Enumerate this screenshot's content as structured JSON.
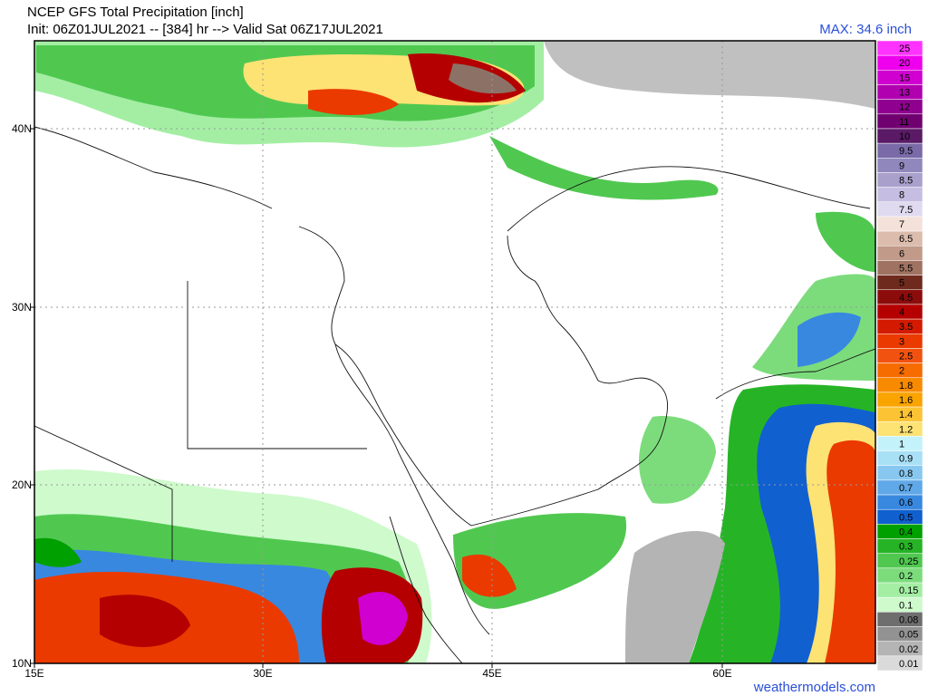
{
  "header": {
    "title": "NCEP GFS Total Precipitation [inch]",
    "subtitle": "Init: 06Z01JUL2021 -- [384] hr --> Valid Sat 06Z17JUL2021",
    "max_label": "MAX: 34.6 inch"
  },
  "map": {
    "lat_labels": [
      "40N",
      "30N",
      "20N",
      "10N"
    ],
    "lon_labels": [
      "15E",
      "30E",
      "45E",
      "60E"
    ]
  },
  "colorbar": {
    "levels": [
      {
        "label": "25",
        "color": "#ff33ff"
      },
      {
        "label": "20",
        "color": "#ee00ee"
      },
      {
        "label": "15",
        "color": "#d000d0"
      },
      {
        "label": "13",
        "color": "#b000b0"
      },
      {
        "label": "12",
        "color": "#900090"
      },
      {
        "label": "11",
        "color": "#700070"
      },
      {
        "label": "10",
        "color": "#5a1a66"
      },
      {
        "label": "9.5",
        "color": "#7a6aa8"
      },
      {
        "label": "9",
        "color": "#9088bc"
      },
      {
        "label": "8.5",
        "color": "#aaa0cc"
      },
      {
        "label": "8",
        "color": "#c6bee2"
      },
      {
        "label": "7.5",
        "color": "#e0daf0"
      },
      {
        "label": "7",
        "color": "#f4e2da"
      },
      {
        "label": "6.5",
        "color": "#dcbcac"
      },
      {
        "label": "6",
        "color": "#c29a8a"
      },
      {
        "label": "5.5",
        "color": "#a07262"
      },
      {
        "label": "5",
        "color": "#6e2a1c"
      },
      {
        "label": "4.5",
        "color": "#8c0c0c"
      },
      {
        "label": "4",
        "color": "#b40000"
      },
      {
        "label": "3.5",
        "color": "#d41a00"
      },
      {
        "label": "3",
        "color": "#ea3a00"
      },
      {
        "label": "2.5",
        "color": "#f25210"
      },
      {
        "label": "2",
        "color": "#f66c00"
      },
      {
        "label": "1.8",
        "color": "#f88a00"
      },
      {
        "label": "1.6",
        "color": "#faa400"
      },
      {
        "label": "1.4",
        "color": "#fcc434"
      },
      {
        "label": "1.2",
        "color": "#fde274"
      },
      {
        "label": "1",
        "color": "#c4f2fa"
      },
      {
        "label": "0.9",
        "color": "#a8e0f6"
      },
      {
        "label": "0.8",
        "color": "#88c8f0"
      },
      {
        "label": "0.7",
        "color": "#60a8e8"
      },
      {
        "label": "0.6",
        "color": "#3888e0"
      },
      {
        "label": "0.5",
        "color": "#1060d0"
      },
      {
        "label": "0.4",
        "color": "#00a000"
      },
      {
        "label": "0.3",
        "color": "#26b426"
      },
      {
        "label": "0.25",
        "color": "#50c850"
      },
      {
        "label": "0.2",
        "color": "#7cdc7c"
      },
      {
        "label": "0.15",
        "color": "#a4eea4"
      },
      {
        "label": "0.1",
        "color": "#cefacc"
      },
      {
        "label": "0.08",
        "color": "#6e6e6e"
      },
      {
        "label": "0.05",
        "color": "#929292"
      },
      {
        "label": "0.02",
        "color": "#b4b4b4"
      },
      {
        "label": "0.01",
        "color": "#dadada"
      }
    ]
  },
  "footer": {
    "watermark": "weathermodels.com"
  }
}
